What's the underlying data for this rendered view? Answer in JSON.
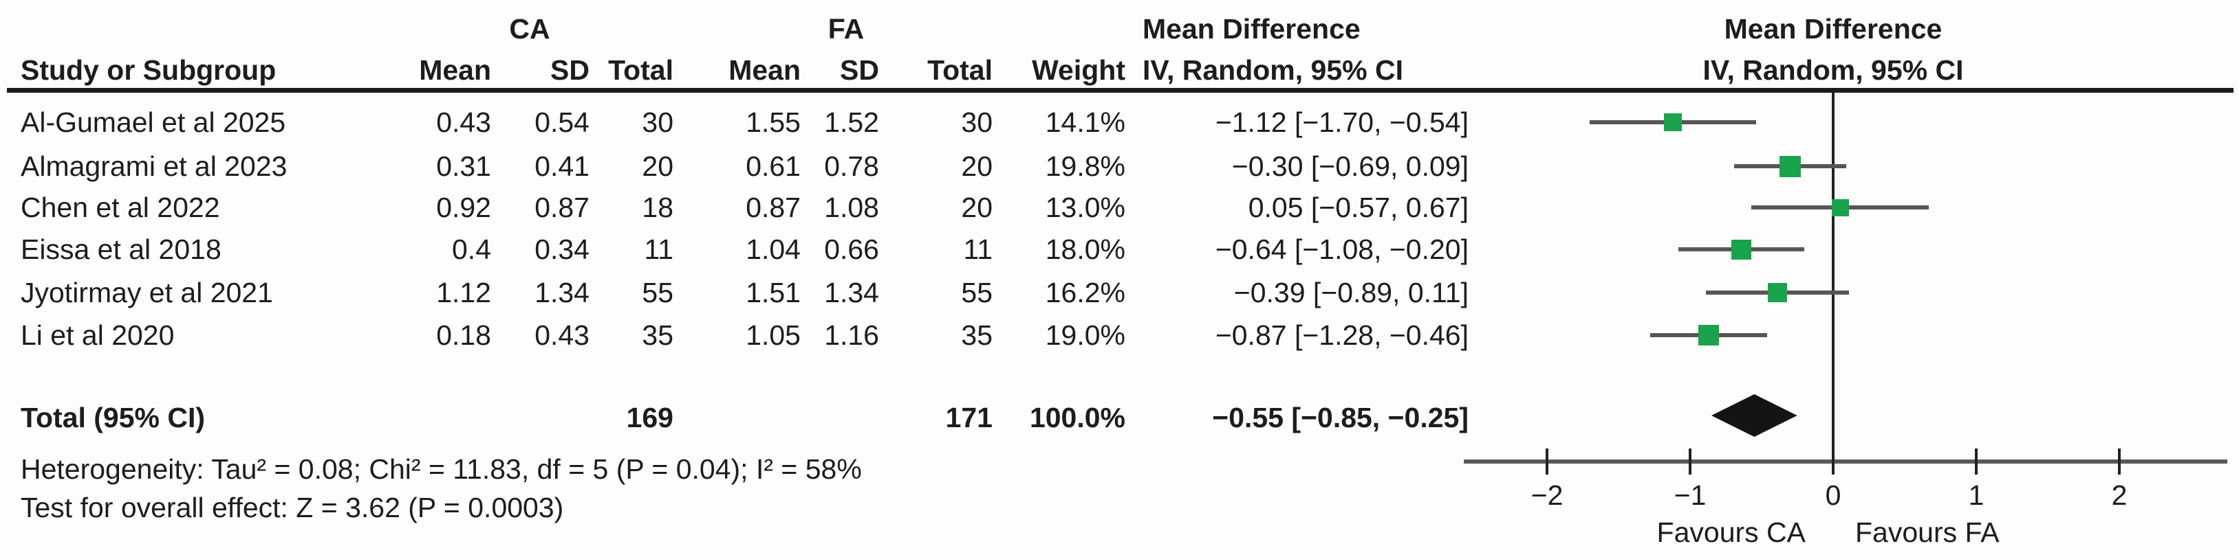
{
  "table": {
    "group_headers": {
      "ca": "CA",
      "fa": "FA"
    },
    "columns": [
      "Study or Subgroup",
      "Mean",
      "SD",
      "Total",
      "Mean",
      "SD",
      "Total",
      "Weight"
    ],
    "md_header_line1": "Mean Difference",
    "md_header_line2": "IV, Random, 95% CI"
  },
  "plot": {
    "header_line1": "Mean Difference",
    "header_line2": "IV, Random, 95% CI",
    "favours_left": "Favours CA",
    "favours_right": "Favours FA",
    "marker_color": "#18A34C",
    "ci_line_color": "#565656",
    "axis_color": "#595959",
    "zero_line_color": "#222222",
    "diamond_color": "#141414"
  },
  "chart_data": {
    "type": "scatter",
    "subtype": "forest_plot_meta_analysis",
    "effect_measure": "Mean Difference",
    "model": "IV, Random, 95% CI",
    "studies": [
      {
        "name": "Al-Gumael et al 2025",
        "ca_mean": "0.43",
        "ca_sd": "0.54",
        "ca_total": "30",
        "fa_mean": "1.55",
        "fa_sd": "1.52",
        "fa_total": "30",
        "weight": "14.1%",
        "md_text": "−1.12 [−1.70, −0.54]",
        "md": -1.12,
        "ci_low": -1.7,
        "ci_high": -0.54,
        "weight_pct": 14.1
      },
      {
        "name": "Almagrami et al 2023",
        "ca_mean": "0.31",
        "ca_sd": "0.41",
        "ca_total": "20",
        "fa_mean": "0.61",
        "fa_sd": "0.78",
        "fa_total": "20",
        "weight": "19.8%",
        "md_text": "−0.30 [−0.69, 0.09]",
        "md": -0.3,
        "ci_low": -0.69,
        "ci_high": 0.09,
        "weight_pct": 19.8
      },
      {
        "name": "Chen et al 2022",
        "ca_mean": "0.92",
        "ca_sd": "0.87",
        "ca_total": "18",
        "fa_mean": "0.87",
        "fa_sd": "1.08",
        "fa_total": "20",
        "weight": "13.0%",
        "md_text": "0.05 [−0.57, 0.67]",
        "md": 0.05,
        "ci_low": -0.57,
        "ci_high": 0.67,
        "weight_pct": 13.0
      },
      {
        "name": "Eissa et al 2018",
        "ca_mean": "0.4",
        "ca_sd": "0.34",
        "ca_total": "11",
        "fa_mean": "1.04",
        "fa_sd": "0.66",
        "fa_total": "11",
        "weight": "18.0%",
        "md_text": "−0.64 [−1.08, −0.20]",
        "md": -0.64,
        "ci_low": -1.08,
        "ci_high": -0.2,
        "weight_pct": 18.0
      },
      {
        "name": "Jyotirmay et al 2021",
        "ca_mean": "1.12",
        "ca_sd": "1.34",
        "ca_total": "55",
        "fa_mean": "1.51",
        "fa_sd": "1.34",
        "fa_total": "55",
        "weight": "16.2%",
        "md_text": "−0.39 [−0.89, 0.11]",
        "md": -0.39,
        "ci_low": -0.89,
        "ci_high": 0.11,
        "weight_pct": 16.2
      },
      {
        "name": "Li et al 2020",
        "ca_mean": "0.18",
        "ca_sd": "0.43",
        "ca_total": "35",
        "fa_mean": "1.05",
        "fa_sd": "1.16",
        "fa_total": "35",
        "weight": "19.0%",
        "md_text": "−0.87 [−1.28, −0.46]",
        "md": -0.87,
        "ci_low": -1.28,
        "ci_high": -0.46,
        "weight_pct": 19.0
      }
    ],
    "total": {
      "label": "Total (95% CI)",
      "ca_total": "169",
      "fa_total": "171",
      "weight": "100.0%",
      "md_text": "−0.55 [−0.85, −0.25]",
      "md": -0.55,
      "ci_low": -0.85,
      "ci_high": -0.25
    },
    "heterogeneity": "Heterogeneity: Tau² = 0.08; Chi² = 11.83, df = 5 (P = 0.04); I² = 58%",
    "overall_effect_test": "Test for overall effect: Z = 3.62 (P = 0.0003)",
    "x_axis": {
      "ticks": [
        -2,
        -1,
        0,
        1,
        2
      ],
      "tick_labels": [
        "−2",
        "−1",
        "0",
        "1",
        "2"
      ],
      "visible_range": [
        -2.58,
        2.75
      ],
      "label_left": "Favours CA",
      "label_right": "Favours FA",
      "grid": false
    },
    "legend_position": "none"
  }
}
